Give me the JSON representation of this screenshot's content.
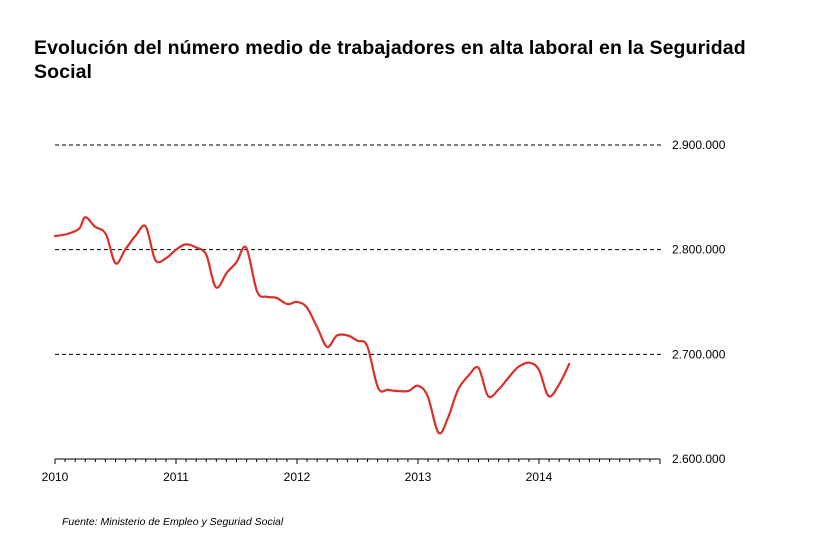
{
  "chart_data": {
    "type": "line",
    "title": "Evolución del número medio de trabajadores en alta laboral en la Seguridad Social",
    "source": "Fuente: Ministerio de Empleo y Seguriad Social",
    "x_tick_labels": [
      "2010",
      "2011",
      "2012",
      "2013",
      "2014"
    ],
    "y_tick_labels": [
      "2.900.000",
      "2.800.000",
      "2.700.000",
      "2.600.000"
    ],
    "y_ticks": [
      2900000,
      2800000,
      2700000,
      2600000
    ],
    "ylim": [
      2600000,
      2900000
    ],
    "xlim": [
      2010,
      2015
    ],
    "grid": "horizontal dashed",
    "y_axis_position": "right",
    "line_color": "#d9302a",
    "series": [
      {
        "x": [
          2010.0,
          2010.1,
          2010.2,
          2010.25,
          2010.33,
          2010.42,
          2010.5,
          2010.58,
          2010.67,
          2010.75,
          2010.83,
          2010.92,
          2011.0,
          2011.08,
          2011.17,
          2011.25,
          2011.33,
          2011.42,
          2011.5,
          2011.58,
          2011.67,
          2011.75,
          2011.83,
          2011.92,
          2012.0,
          2012.08,
          2012.17,
          2012.25,
          2012.33,
          2012.42,
          2012.5,
          2012.58,
          2012.67,
          2012.75,
          2012.83,
          2012.92,
          2013.0,
          2013.08,
          2013.17,
          2013.25,
          2013.33,
          2013.42,
          2013.5,
          2013.58,
          2013.67,
          2013.75,
          2013.83,
          2013.92,
          2014.0,
          2014.08,
          2014.17,
          2014.25
        ],
        "values": [
          2813000,
          2815000,
          2820000,
          2831000,
          2822000,
          2815000,
          2787000,
          2800000,
          2814000,
          2822000,
          2790000,
          2792000,
          2800000,
          2805000,
          2802000,
          2795000,
          2764000,
          2778000,
          2788000,
          2802000,
          2760000,
          2755000,
          2754000,
          2748000,
          2750000,
          2745000,
          2725000,
          2707000,
          2718000,
          2718000,
          2713000,
          2708000,
          2668000,
          2666000,
          2665000,
          2665000,
          2670000,
          2660000,
          2625000,
          2640000,
          2666000,
          2680000,
          2687000,
          2660000,
          2667000,
          2678000,
          2688000,
          2692000,
          2685000,
          2660000,
          2672000,
          2691000
        ]
      }
    ]
  }
}
